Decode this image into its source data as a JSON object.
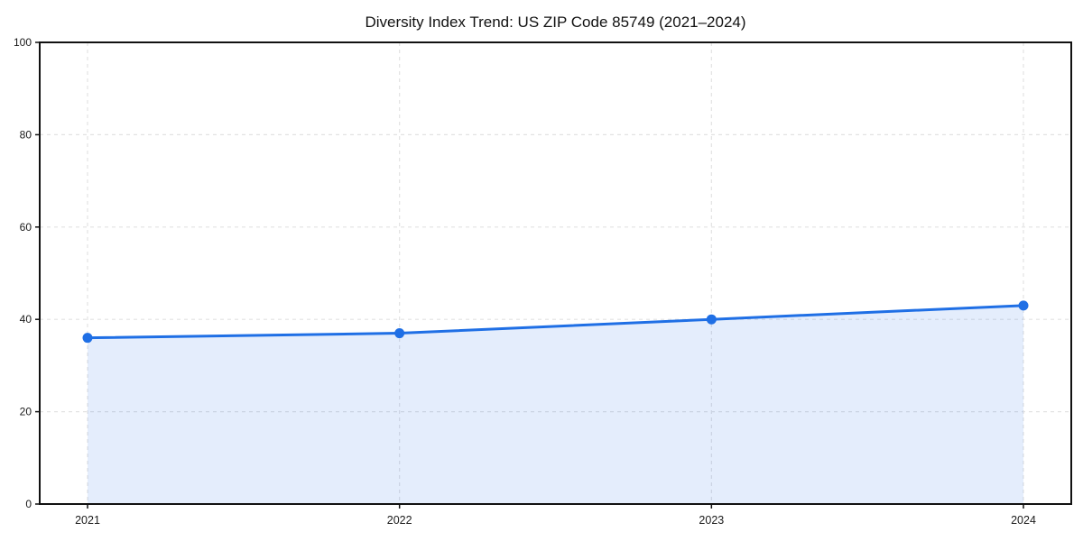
{
  "page": {
    "background_color": "#ffffff"
  },
  "chart_data": {
    "type": "line",
    "title": "Diversity Index Trend: US ZIP Code 85749 (2021–2024)",
    "categories": [
      "2021",
      "2022",
      "2023",
      "2024"
    ],
    "series": [
      {
        "name": "Diversity Index",
        "values": [
          36,
          37,
          40,
          43
        ]
      }
    ],
    "xlabel": "",
    "ylabel": "",
    "ylim": [
      0,
      100
    ],
    "yticks": [
      0,
      20,
      40,
      60,
      80,
      100
    ],
    "grid": true,
    "grid_style": "dashed",
    "legend_position": "none",
    "area_fill": true,
    "marker": "circle",
    "colors": {
      "line": "#1f6fe5",
      "marker": "#1f6fe5",
      "fill": "#1f6fe5",
      "fill_opacity": 0.12,
      "grid": "#e2e2e2",
      "axis": "#111111",
      "text": "#1a1a1a",
      "background": "#ffffff"
    }
  }
}
